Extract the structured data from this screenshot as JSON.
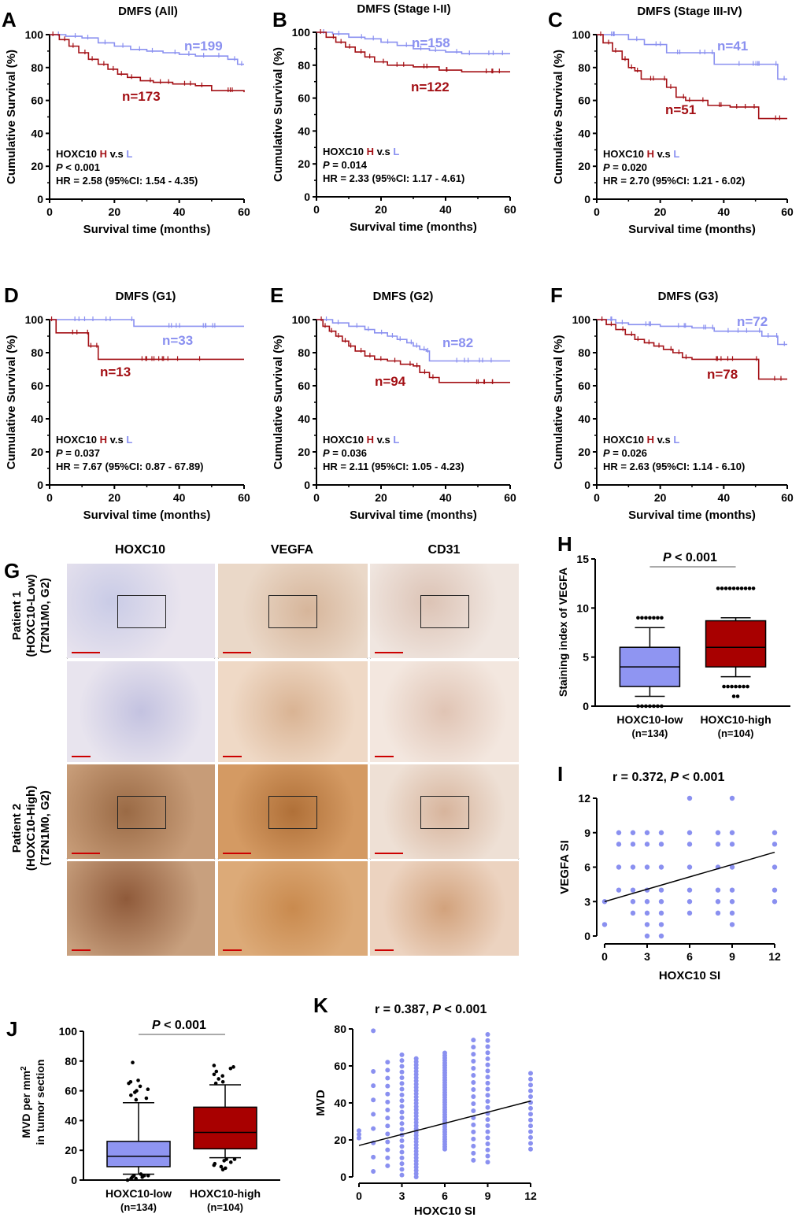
{
  "colors": {
    "high": "#a30f14",
    "low": "#8a90f0",
    "highFill": "#a80000",
    "lowFill": "#8f95f2"
  },
  "km_panels": [
    {
      "letter": "A",
      "title": "DMFS (All)",
      "n_low": "n=199",
      "n_high": "n=173",
      "p": "< 0.001",
      "hr": "HR = 2.58 (95%CI: 1.54 - 4.35)",
      "low": [
        [
          0,
          100
        ],
        [
          5,
          99
        ],
        [
          10,
          98
        ],
        [
          15,
          95
        ],
        [
          20,
          93
        ],
        [
          25,
          91
        ],
        [
          30,
          90
        ],
        [
          35,
          89
        ],
        [
          40,
          88
        ],
        [
          45,
          87
        ],
        [
          50,
          87
        ],
        [
          55,
          85
        ],
        [
          58,
          82
        ],
        [
          60,
          82
        ]
      ],
      "high": [
        [
          0,
          100
        ],
        [
          3,
          97
        ],
        [
          6,
          93
        ],
        [
          9,
          89
        ],
        [
          12,
          85
        ],
        [
          15,
          82
        ],
        [
          18,
          79
        ],
        [
          21,
          76
        ],
        [
          24,
          74
        ],
        [
          28,
          72
        ],
        [
          32,
          71
        ],
        [
          38,
          70
        ],
        [
          45,
          69
        ],
        [
          50,
          66
        ],
        [
          60,
          65
        ]
      ]
    },
    {
      "letter": "B",
      "title": "DMFS (Stage I-II)",
      "n_low": "n=158",
      "n_high": "n=122",
      "p": "= 0.014",
      "hr": "HR = 2.33 (95%CI: 1.17 - 4.61)",
      "low": [
        [
          0,
          100
        ],
        [
          5,
          99
        ],
        [
          10,
          97
        ],
        [
          15,
          96
        ],
        [
          20,
          94
        ],
        [
          25,
          92
        ],
        [
          30,
          90
        ],
        [
          35,
          89
        ],
        [
          40,
          88
        ],
        [
          45,
          87
        ],
        [
          50,
          87
        ],
        [
          60,
          87
        ]
      ],
      "high": [
        [
          0,
          100
        ],
        [
          3,
          97
        ],
        [
          6,
          94
        ],
        [
          9,
          91
        ],
        [
          12,
          88
        ],
        [
          15,
          85
        ],
        [
          18,
          82
        ],
        [
          22,
          80
        ],
        [
          30,
          79
        ],
        [
          38,
          77
        ],
        [
          45,
          76
        ],
        [
          60,
          76
        ]
      ]
    },
    {
      "letter": "C",
      "title": "DMFS (Stage III-IV)",
      "n_low": "n=41",
      "n_high": "n=51",
      "p": "= 0.020",
      "hr": "HR = 2.70 (95%CI: 1.21 - 6.02)",
      "low": [
        [
          0,
          100
        ],
        [
          10,
          97
        ],
        [
          15,
          94
        ],
        [
          22,
          89
        ],
        [
          30,
          89
        ],
        [
          36,
          89
        ],
        [
          37,
          82
        ],
        [
          55,
          82
        ],
        [
          57,
          73
        ],
        [
          60,
          73
        ]
      ],
      "high": [
        [
          0,
          100
        ],
        [
          2,
          95
        ],
        [
          5,
          90
        ],
        [
          8,
          85
        ],
        [
          10,
          80
        ],
        [
          12,
          78
        ],
        [
          14,
          73
        ],
        [
          20,
          73
        ],
        [
          22,
          68
        ],
        [
          25,
          62
        ],
        [
          28,
          60
        ],
        [
          32,
          60
        ],
        [
          35,
          57
        ],
        [
          42,
          56
        ],
        [
          48,
          56
        ],
        [
          51,
          49
        ],
        [
          60,
          49
        ]
      ]
    },
    {
      "letter": "D",
      "title": "DMFS (G1)",
      "n_low": "n=33",
      "n_high": "n=13",
      "p": "= 0.037",
      "hr": "HR = 7.67 (95%CI: 0.87 - 67.89)",
      "low": [
        [
          0,
          100
        ],
        [
          25,
          100
        ],
        [
          26,
          96
        ],
        [
          60,
          96
        ]
      ],
      "high": [
        [
          0,
          100
        ],
        [
          2,
          92
        ],
        [
          11,
          92
        ],
        [
          12,
          84
        ],
        [
          14,
          84
        ],
        [
          15,
          76
        ],
        [
          60,
          76
        ]
      ]
    },
    {
      "letter": "E",
      "title": "DMFS (G2)",
      "n_low": "n=82",
      "n_high": "n=94",
      "p": "= 0.036",
      "hr": "HR = 2.11 (95%CI: 1.05 - 4.23)",
      "low": [
        [
          0,
          100
        ],
        [
          5,
          98
        ],
        [
          10,
          96
        ],
        [
          15,
          94
        ],
        [
          18,
          92
        ],
        [
          22,
          90
        ],
        [
          25,
          88
        ],
        [
          28,
          86
        ],
        [
          30,
          84
        ],
        [
          32,
          82
        ],
        [
          34,
          81
        ],
        [
          35,
          75
        ],
        [
          60,
          75
        ]
      ],
      "high": [
        [
          0,
          100
        ],
        [
          2,
          96
        ],
        [
          4,
          93
        ],
        [
          6,
          90
        ],
        [
          8,
          87
        ],
        [
          10,
          84
        ],
        [
          12,
          81
        ],
        [
          15,
          78
        ],
        [
          18,
          76
        ],
        [
          22,
          75
        ],
        [
          26,
          73
        ],
        [
          30,
          72
        ],
        [
          32,
          68
        ],
        [
          35,
          65
        ],
        [
          38,
          62
        ],
        [
          60,
          62
        ]
      ]
    },
    {
      "letter": "F",
      "title": "DMFS (G3)",
      "n_low": "n=72",
      "n_high": "n=78",
      "p": "= 0.026",
      "hr": "HR = 2.63 (95%CI: 1.14 - 6.10)",
      "low": [
        [
          0,
          100
        ],
        [
          6,
          98
        ],
        [
          10,
          97
        ],
        [
          20,
          96
        ],
        [
          30,
          95
        ],
        [
          36,
          95
        ],
        [
          37,
          93
        ],
        [
          50,
          93
        ],
        [
          52,
          90
        ],
        [
          56,
          90
        ],
        [
          57,
          85
        ],
        [
          60,
          85
        ]
      ],
      "high": [
        [
          0,
          100
        ],
        [
          3,
          97
        ],
        [
          6,
          94
        ],
        [
          9,
          91
        ],
        [
          12,
          88
        ],
        [
          15,
          86
        ],
        [
          18,
          84
        ],
        [
          21,
          82
        ],
        [
          24,
          80
        ],
        [
          27,
          77
        ],
        [
          30,
          76
        ],
        [
          50,
          76
        ],
        [
          51,
          64
        ],
        [
          60,
          64
        ]
      ]
    }
  ],
  "km_common": {
    "ylabel": "Cumulative Survival (%)",
    "xlabel": "Survival time (months)",
    "xticks": [
      "0",
      "20",
      "40",
      "60"
    ],
    "yticks": [
      "0",
      "20",
      "40",
      "60",
      "80",
      "100"
    ],
    "legend_prefix": "HOXC10 ",
    "legend_H": "H",
    "legend_mid": " v.s ",
    "legend_L": "L",
    "p_italic": "P"
  },
  "ihc": {
    "letter": "G",
    "columns": [
      "HOXC10",
      "VEGFA",
      "CD31"
    ],
    "rows": [
      {
        "line1": "Patient 1",
        "line2": "(HOXC10-Low)",
        "line3": "(T2N1M0, G2)"
      },
      {
        "line1": "Patient 2",
        "line2": "(HOXC10-High)",
        "line3": "(T2N1M0, G2)"
      }
    ]
  },
  "chart_data": [
    {
      "panel": "H",
      "type": "box",
      "title_p": "P",
      "title_rest": " < 0.001",
      "ylabel": "Staining index of VEGFA",
      "ylim": [
        0,
        15
      ],
      "yticks": [
        "0",
        "5",
        "10",
        "15"
      ],
      "groups": [
        {
          "name": "HOXC10-low",
          "n": "(n=134)",
          "whisker_low": 1,
          "q1": 2,
          "median": 4,
          "q3": 6,
          "whisker_high": 8,
          "outliers": [
            0,
            0,
            0,
            0,
            0,
            0,
            0,
            9,
            9,
            9,
            9,
            9,
            9,
            9
          ]
        },
        {
          "name": "HOXC10-high",
          "n": "(n=104)",
          "whisker_low": 3,
          "q1": 4,
          "median": 6,
          "q3": 8.7,
          "whisker_high": 9,
          "outliers": [
            2,
            2,
            2,
            2,
            2,
            2,
            2,
            1,
            1,
            12,
            12,
            12,
            12,
            12,
            12,
            12,
            12,
            12,
            12
          ]
        }
      ]
    },
    {
      "panel": "I",
      "type": "scatter",
      "title": "r = 0.372, ",
      "title_p": "P",
      "title_rest": " < 0.001",
      "xlabel": "HOXC10 SI",
      "ylabel": "VEGFA SI",
      "xlim": [
        0,
        12
      ],
      "ylim": [
        0,
        12
      ],
      "xticks": [
        "0",
        "3",
        "6",
        "9",
        "12"
      ],
      "yticks": [
        "0",
        "3",
        "6",
        "9",
        "12"
      ],
      "points": [
        [
          0,
          1
        ],
        [
          0,
          3
        ],
        [
          1,
          4
        ],
        [
          1,
          6
        ],
        [
          1,
          8
        ],
        [
          1,
          9
        ],
        [
          2,
          2
        ],
        [
          2,
          3
        ],
        [
          2,
          4
        ],
        [
          2,
          6
        ],
        [
          2,
          8
        ],
        [
          2,
          9
        ],
        [
          3,
          0
        ],
        [
          3,
          1
        ],
        [
          3,
          2
        ],
        [
          3,
          3
        ],
        [
          3,
          4
        ],
        [
          3,
          6
        ],
        [
          3,
          8
        ],
        [
          3,
          9
        ],
        [
          4,
          0
        ],
        [
          4,
          1
        ],
        [
          4,
          2
        ],
        [
          4,
          3
        ],
        [
          4,
          4
        ],
        [
          4,
          6
        ],
        [
          4,
          8
        ],
        [
          4,
          9
        ],
        [
          6,
          2
        ],
        [
          6,
          3
        ],
        [
          6,
          4
        ],
        [
          6,
          6
        ],
        [
          6,
          8
        ],
        [
          6,
          9
        ],
        [
          6,
          12
        ],
        [
          8,
          2
        ],
        [
          8,
          3
        ],
        [
          8,
          4
        ],
        [
          8,
          6
        ],
        [
          8,
          8
        ],
        [
          8,
          9
        ],
        [
          9,
          1
        ],
        [
          9,
          2
        ],
        [
          9,
          3
        ],
        [
          9,
          4
        ],
        [
          9,
          6
        ],
        [
          9,
          8
        ],
        [
          9,
          9
        ],
        [
          9,
          12
        ],
        [
          12,
          3
        ],
        [
          12,
          4
        ],
        [
          12,
          6
        ],
        [
          12,
          8
        ],
        [
          12,
          9
        ]
      ],
      "fit": [
        [
          0,
          3.0
        ],
        [
          12,
          7.3
        ]
      ]
    },
    {
      "panel": "J",
      "type": "box",
      "title_p": "P",
      "title_rest": " < 0.001",
      "ylabel1": "MVD per mm",
      "ylabel_sup": "2",
      "ylabel2": "in tumor section",
      "ylim": [
        0,
        100
      ],
      "yticks": [
        "0",
        "20",
        "40",
        "60",
        "80",
        "100"
      ],
      "groups": [
        {
          "name": "HOXC10-low",
          "n": "(n=134)",
          "whisker_low": 4,
          "q1": 9,
          "median": 16,
          "q3": 26,
          "whisker_high": 52,
          "outliers": [
            0,
            1,
            1,
            2,
            2,
            3,
            3,
            3,
            4,
            54,
            55,
            57,
            59,
            60,
            61,
            63,
            65,
            66,
            67,
            79
          ]
        },
        {
          "name": "HOXC10-high",
          "n": "(n=104)",
          "whisker_low": 15,
          "q1": 21,
          "median": 32,
          "q3": 49,
          "whisker_high": 64,
          "outliers": [
            7,
            8,
            9,
            10,
            11,
            12,
            13,
            14,
            14,
            65,
            66,
            68,
            70,
            71,
            73,
            75,
            76,
            77
          ]
        }
      ]
    },
    {
      "panel": "K",
      "type": "scatter",
      "title": "r = 0.387, ",
      "title_p": "P",
      "title_rest": " < 0.001",
      "xlabel": "HOXC10 SI",
      "ylabel": "MVD",
      "xlim": [
        0,
        12
      ],
      "ylim": [
        0,
        80
      ],
      "xticks": [
        "0",
        "3",
        "6",
        "9",
        "12"
      ],
      "yticks": [
        "0",
        "20",
        "40",
        "60",
        "80"
      ],
      "columns": [
        {
          "x": 0,
          "min": 21,
          "max": 25,
          "n": 3
        },
        {
          "x": 1,
          "min": 3,
          "max": 57,
          "n": 8,
          "extra": [
            79
          ]
        },
        {
          "x": 2,
          "min": 6,
          "max": 62,
          "n": 14
        },
        {
          "x": 3,
          "min": 1,
          "max": 66,
          "n": 22
        },
        {
          "x": 4,
          "min": 0,
          "max": 64,
          "n": 38
        },
        {
          "x": 6,
          "min": 15,
          "max": 67,
          "n": 40
        },
        {
          "x": 8,
          "min": 9,
          "max": 74,
          "n": 18
        },
        {
          "x": 9,
          "min": 8,
          "max": 77,
          "n": 22
        },
        {
          "x": 12,
          "min": 15,
          "max": 56,
          "n": 14
        }
      ],
      "fit": [
        [
          0,
          17
        ],
        [
          12,
          41
        ]
      ]
    }
  ]
}
